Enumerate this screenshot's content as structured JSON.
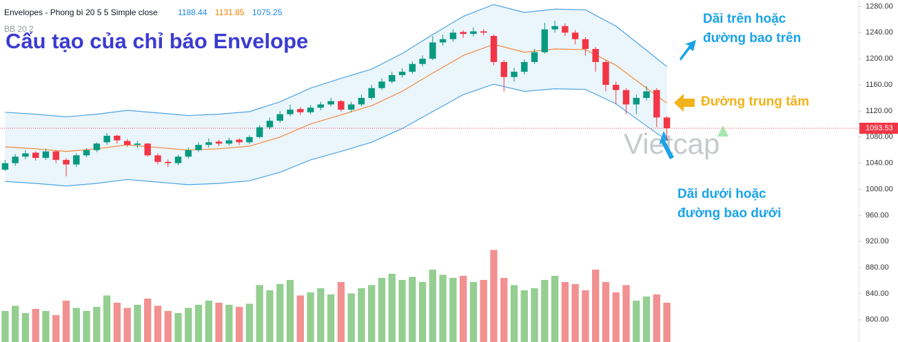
{
  "chart_data": {
    "type": "candlestick",
    "title": "Cấu tạo của chỉ báo Envelope",
    "indicator_label": "Envelopes - Phong bì 20 5 5 Simple close",
    "indicator_values": [
      1188.44,
      1131.85,
      1075.25
    ],
    "secondary_label": "BB 20 2",
    "watermark": "Vietcap",
    "up_color": "#089981",
    "down_color": "#f23645",
    "volume_up_color": "#94cf91",
    "volume_down_color": "#f29191",
    "open": [
      1030,
      1040,
      1050,
      1056,
      1048,
      1058,
      1045,
      1038,
      1052,
      1060,
      1072,
      1082,
      1074,
      1068,
      1070,
      1052,
      1042,
      1040,
      1050,
      1060,
      1068,
      1073,
      1070,
      1076,
      1072,
      1080,
      1095,
      1105,
      1115,
      1123,
      1118,
      1125,
      1130,
      1135,
      1122,
      1130,
      1140,
      1155,
      1165,
      1175,
      1180,
      1192,
      1200,
      1225,
      1230,
      1241,
      1238,
      1242,
      1235,
      1195,
      1172,
      1180,
      1195,
      1210,
      1245,
      1250,
      1240,
      1230,
      1215,
      1195,
      1160,
      1152,
      1130,
      1140,
      1152,
      1110
    ],
    "high": [
      1045,
      1054,
      1060,
      1058,
      1062,
      1060,
      1048,
      1055,
      1063,
      1072,
      1086,
      1084,
      1077,
      1074,
      1071,
      1055,
      1046,
      1053,
      1064,
      1072,
      1078,
      1076,
      1079,
      1078,
      1083,
      1098,
      1110,
      1120,
      1130,
      1126,
      1129,
      1134,
      1140,
      1137,
      1134,
      1145,
      1160,
      1170,
      1180,
      1185,
      1196,
      1205,
      1235,
      1237,
      1245,
      1244,
      1248,
      1245,
      1237,
      1198,
      1186,
      1199,
      1215,
      1255,
      1258,
      1254,
      1244,
      1233,
      1218,
      1198,
      1165,
      1155,
      1145,
      1158,
      1155,
      1112
    ],
    "low": [
      1028,
      1036,
      1046,
      1044,
      1045,
      1040,
      1020,
      1034,
      1049,
      1057,
      1068,
      1070,
      1065,
      1063,
      1050,
      1038,
      1034,
      1037,
      1047,
      1057,
      1064,
      1066,
      1067,
      1068,
      1069,
      1078,
      1092,
      1102,
      1112,
      1114,
      1115,
      1121,
      1127,
      1119,
      1118,
      1127,
      1137,
      1152,
      1162,
      1171,
      1177,
      1188,
      1198,
      1220,
      1226,
      1232,
      1234,
      1236,
      1190,
      1150,
      1165,
      1176,
      1192,
      1208,
      1240,
      1235,
      1222,
      1205,
      1180,
      1150,
      1130,
      1115,
      1115,
      1136,
      1095,
      1075
    ],
    "close": [
      1040,
      1050,
      1055,
      1048,
      1058,
      1045,
      1038,
      1052,
      1060,
      1070,
      1082,
      1075,
      1068,
      1070,
      1052,
      1042,
      1040,
      1050,
      1060,
      1068,
      1072,
      1070,
      1075,
      1072,
      1080,
      1095,
      1105,
      1115,
      1122,
      1118,
      1125,
      1130,
      1135,
      1122,
      1130,
      1140,
      1155,
      1165,
      1175,
      1180,
      1192,
      1200,
      1225,
      1230,
      1240,
      1238,
      1242,
      1240,
      1195,
      1172,
      1180,
      1195,
      1210,
      1245,
      1250,
      1240,
      1230,
      1215,
      1195,
      1160,
      1152,
      1130,
      1140,
      1150,
      1110,
      1093.53
    ],
    "volume": [
      30,
      35,
      28,
      32,
      30,
      26,
      40,
      33,
      30,
      34,
      45,
      38,
      33,
      36,
      42,
      35,
      30,
      28,
      33,
      36,
      40,
      38,
      36,
      34,
      37,
      55,
      50,
      56,
      60,
      45,
      48,
      52,
      46,
      58,
      47,
      52,
      55,
      62,
      66,
      60,
      63,
      58,
      70,
      65,
      62,
      64,
      58,
      60,
      89,
      62,
      55,
      50,
      52,
      60,
      64,
      58,
      56,
      50,
      70,
      58,
      48,
      55,
      40,
      44,
      46,
      38
    ],
    "volume_lim": [
      0,
      100
    ],
    "envelope_x": [
      0,
      3,
      6,
      9,
      12,
      15,
      18,
      21,
      24,
      27,
      30,
      33,
      36,
      39,
      42,
      45,
      48,
      51,
      54,
      57,
      60,
      63,
      65
    ],
    "series": [
      {
        "color": "#4ba3e3",
        "values": [
          1118,
          1115,
          1111,
          1115,
          1121,
          1117,
          1113,
          1115,
          1119,
          1134,
          1155,
          1170,
          1184,
          1208,
          1237,
          1265,
          1283,
          1271,
          1276,
          1275,
          1250,
          1213,
          1188
        ]
      },
      {
        "color": "#f5883a",
        "values": [
          1065,
          1062,
          1058,
          1062,
          1068,
          1064,
          1060,
          1062,
          1066,
          1080,
          1100,
          1114,
          1128,
          1150,
          1178,
          1205,
          1222,
          1210,
          1215,
          1214,
          1190,
          1155,
          1132
        ]
      },
      {
        "color": "#4ba3e3",
        "values": [
          1012,
          1009,
          1005,
          1009,
          1015,
          1011,
          1007,
          1009,
          1013,
          1026,
          1045,
          1058,
          1072,
          1093,
          1119,
          1145,
          1161,
          1150,
          1154,
          1153,
          1131,
          1097,
          1075
        ]
      }
    ],
    "band_fill": "#e3f1fb",
    "last_price": 1093.53,
    "ylim": [
      766,
      1290
    ],
    "yticks": [
      {
        "value": 800,
        "label": "800.00"
      },
      {
        "value": 840,
        "label": "840.00"
      },
      {
        "value": 880,
        "label": "880.00"
      },
      {
        "value": 920,
        "label": "920.00"
      },
      {
        "value": 960,
        "label": "960.00"
      },
      {
        "value": 1000,
        "label": "1000.00"
      },
      {
        "value": 1040,
        "label": "1040.00"
      },
      {
        "value": 1080,
        "label": "1080.00"
      },
      {
        "value": 1120,
        "label": "1120.00"
      },
      {
        "value": 1160,
        "label": "1160.00"
      },
      {
        "value": 1200,
        "label": "1200.00"
      },
      {
        "value": 1240,
        "label": "1240.00"
      },
      {
        "value": 1280,
        "label": "1280.00"
      }
    ],
    "annotations": [
      {
        "lines": [
          "Dãi trên hoặc",
          "đường bao trên"
        ],
        "color": "#1aa3e8"
      },
      {
        "lines": [
          "Đường trung tâm"
        ],
        "color": "#f2b21b"
      },
      {
        "lines": [
          "Dãi dưới hoặc",
          "đường bao dưới"
        ],
        "color": "#1aa3e8"
      }
    ]
  }
}
